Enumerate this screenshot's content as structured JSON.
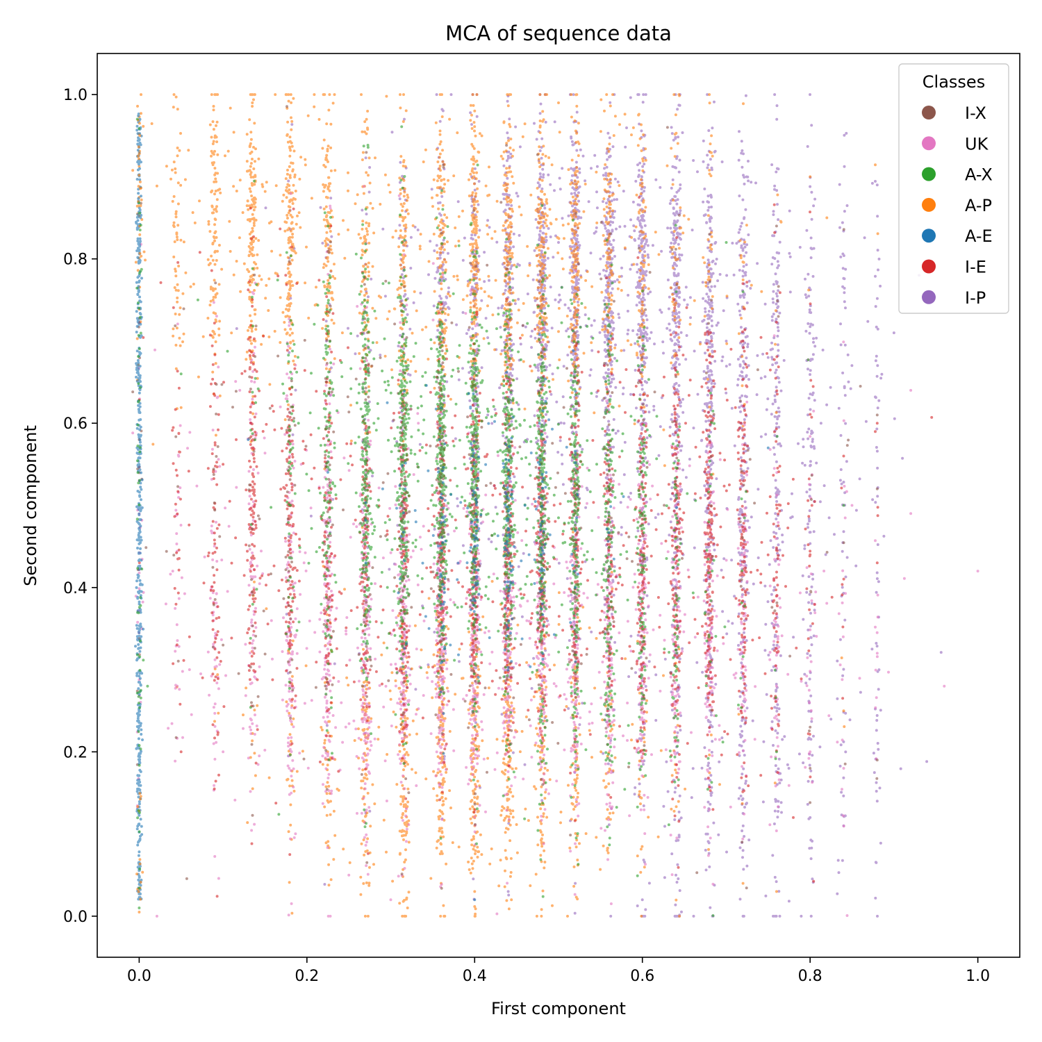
{
  "chart_data": {
    "type": "scatter",
    "title": "MCA of sequence data",
    "xlabel": "First component",
    "ylabel": "Second component",
    "xlim": [
      -0.05,
      1.05
    ],
    "ylim": [
      -0.05,
      1.05
    ],
    "xticks": [
      0.0,
      0.2,
      0.4,
      0.6,
      0.8,
      1.0
    ],
    "xtick_labels": [
      "0.0",
      "0.2",
      "0.4",
      "0.6",
      "0.8",
      "1.0"
    ],
    "yticks": [
      0.0,
      0.2,
      0.4,
      0.6,
      0.8,
      1.0
    ],
    "ytick_labels": [
      "0.0",
      "0.2",
      "0.4",
      "0.6",
      "0.8",
      "1.0"
    ],
    "grid": false,
    "legend": {
      "title": "Classes",
      "position": "top-right",
      "entries": [
        {
          "label": "I-X",
          "color": "#8c564b"
        },
        {
          "label": "UK",
          "color": "#e377c2"
        },
        {
          "label": "A-X",
          "color": "#2ca02c"
        },
        {
          "label": "A-P",
          "color": "#ff7f0e"
        },
        {
          "label": "A-E",
          "color": "#1f77b4"
        },
        {
          "label": "I-E",
          "color": "#d62728"
        },
        {
          "label": "I-P",
          "color": "#9467bd"
        }
      ]
    },
    "column_x_values": [
      0.0,
      0.045,
      0.09,
      0.135,
      0.18,
      0.225,
      0.27,
      0.315,
      0.36,
      0.4,
      0.44,
      0.48,
      0.52,
      0.56,
      0.6,
      0.64,
      0.68,
      0.72,
      0.76,
      0.8,
      0.84,
      0.88
    ],
    "series": [
      {
        "name": "I-P",
        "color": "#9467bd",
        "draw_order": 1,
        "points": [
          [
            0.5,
            0.82
          ],
          [
            0.45,
            0.88
          ],
          [
            0.55,
            0.8
          ],
          [
            0.6,
            0.86
          ],
          [
            0.65,
            0.75
          ],
          [
            0.7,
            0.7
          ],
          [
            0.4,
            0.78
          ],
          [
            0.75,
            0.68
          ],
          [
            0.9,
            0.71
          ],
          [
            0.93,
            0.78
          ],
          [
            0.88,
            0.89
          ],
          [
            0.64,
            0.05
          ],
          [
            0.52,
            0.04
          ],
          [
            0.72,
            0.08
          ],
          [
            0.8,
            0.12
          ],
          [
            0.84,
            0.11
          ],
          [
            0.88,
            0.14
          ],
          [
            0.44,
            0.03
          ],
          [
            0.6,
            0.02
          ],
          [
            0.68,
            0.06
          ]
        ],
        "clusters": [
          {
            "cx": 0.55,
            "cy": 0.78,
            "sx": 0.12,
            "sy": 0.09,
            "n": 1800
          },
          {
            "cx": 0.7,
            "cy": 0.6,
            "sx": 0.09,
            "sy": 0.12,
            "n": 700
          },
          {
            "cx": 0.72,
            "cy": 0.25,
            "sx": 0.09,
            "sy": 0.14,
            "n": 500
          },
          {
            "cx": 0.45,
            "cy": 0.55,
            "sx": 0.12,
            "sy": 0.18,
            "n": 700
          }
        ]
      },
      {
        "name": "A-P",
        "color": "#ff7f0e",
        "draw_order": 2,
        "points": [
          [
            0.135,
            0.99
          ],
          [
            0.4,
            0.98
          ],
          [
            0.5,
            0.99
          ],
          [
            0.37,
            0.97
          ],
          [
            0.0,
            0.005
          ],
          [
            0.32,
            0.01
          ],
          [
            0.36,
            0.04
          ],
          [
            0.4,
            0.03
          ],
          [
            0.76,
            0.03
          ],
          [
            0.72,
            0.04
          ],
          [
            0.8,
            0.9
          ],
          [
            0.82,
            0.85
          ],
          [
            0.84,
            0.25
          ],
          [
            0.04,
            0.87
          ]
        ],
        "clusters": [
          {
            "cx": 0.45,
            "cy": 0.8,
            "sx": 0.12,
            "sy": 0.09,
            "n": 1500
          },
          {
            "cx": 0.4,
            "cy": 0.2,
            "sx": 0.12,
            "sy": 0.09,
            "n": 1100
          },
          {
            "cx": 0.15,
            "cy": 0.83,
            "sx": 0.07,
            "sy": 0.09,
            "n": 700
          }
        ]
      },
      {
        "name": "UK",
        "color": "#e377c2",
        "draw_order": 3,
        "points": [
          [
            0.92,
            0.64
          ],
          [
            1.0,
            0.42
          ],
          [
            0.96,
            0.28
          ],
          [
            0.92,
            0.49
          ],
          [
            0.88,
            0.32
          ],
          [
            0.85,
            0.5
          ],
          [
            0.04,
            0.42
          ],
          [
            0.06,
            0.3
          ],
          [
            0.1,
            0.2
          ],
          [
            0.12,
            0.64
          ],
          [
            0.3,
            0.02
          ],
          [
            0.25,
            0.05
          ],
          [
            0.8,
            0.2
          ],
          [
            0.84,
            0.18
          ]
        ],
        "clusters": [
          {
            "cx": 0.4,
            "cy": 0.33,
            "sx": 0.16,
            "sy": 0.1,
            "n": 2600
          },
          {
            "cx": 0.25,
            "cy": 0.45,
            "sx": 0.12,
            "sy": 0.16,
            "n": 600
          },
          {
            "cx": 0.65,
            "cy": 0.35,
            "sx": 0.1,
            "sy": 0.12,
            "n": 500
          }
        ]
      },
      {
        "name": "I-E",
        "color": "#d62728",
        "draw_order": 4,
        "points": [
          [
            0.945,
            0.607
          ],
          [
            0.88,
            0.6
          ],
          [
            0.84,
            0.56
          ],
          [
            0.88,
            0.43
          ],
          [
            0.8,
            0.44
          ],
          [
            0.06,
            0.34
          ],
          [
            0.05,
            0.2
          ],
          [
            0.1,
            0.55
          ],
          [
            0.78,
            0.12
          ],
          [
            0.72,
            0.7
          ]
        ],
        "clusters": [
          {
            "cx": 0.43,
            "cy": 0.45,
            "sx": 0.14,
            "sy": 0.11,
            "n": 2600
          },
          {
            "cx": 0.68,
            "cy": 0.45,
            "sx": 0.06,
            "sy": 0.14,
            "n": 600
          },
          {
            "cx": 0.15,
            "cy": 0.5,
            "sx": 0.06,
            "sy": 0.14,
            "n": 400
          }
        ]
      },
      {
        "name": "I-X",
        "color": "#8c564b",
        "draw_order": 5,
        "points": [
          [
            0.86,
            0.645
          ],
          [
            0.88,
            0.61
          ],
          [
            0.88,
            0.52
          ],
          [
            0.8,
            0.23
          ],
          [
            0.8,
            0.18
          ],
          [
            0.88,
            0.19
          ],
          [
            0.1,
            0.33
          ],
          [
            0.63,
            0.96
          ],
          [
            0.68,
            0.83
          ],
          [
            0.76,
            0.84
          ]
        ],
        "clusters": [
          {
            "cx": 0.4,
            "cy": 0.5,
            "sx": 0.18,
            "sy": 0.16,
            "n": 700
          }
        ]
      },
      {
        "name": "A-X",
        "color": "#2ca02c",
        "draw_order": 6,
        "points": [
          [
            0.01,
            0.28
          ],
          [
            0.7,
            0.82
          ],
          [
            0.72,
            0.76
          ],
          [
            0.84,
            0.5
          ],
          [
            0.76,
            0.2
          ],
          [
            0.07,
            0.75
          ],
          [
            0.05,
            0.66
          ]
        ],
        "clusters": [
          {
            "cx": 0.42,
            "cy": 0.55,
            "sx": 0.1,
            "sy": 0.1,
            "n": 2200
          },
          {
            "cx": 0.3,
            "cy": 0.55,
            "sx": 0.07,
            "sy": 0.15,
            "n": 700
          },
          {
            "cx": 0.55,
            "cy": 0.35,
            "sx": 0.08,
            "sy": 0.12,
            "n": 500
          }
        ]
      },
      {
        "name": "A-E",
        "color": "#1f77b4",
        "draw_order": 7,
        "points": [
          [
            0.4,
            0.02
          ],
          [
            0.75,
            0.57
          ],
          [
            0.13,
            0.58
          ],
          [
            0.4,
            0.45
          ],
          [
            0.46,
            0.5
          ],
          [
            0.48,
            0.42
          ],
          [
            0.52,
            0.4
          ],
          [
            0.33,
            0.48
          ]
        ],
        "clusters": [
          {
            "cx": 0.42,
            "cy": 0.47,
            "sx": 0.06,
            "sy": 0.08,
            "n": 300
          }
        ],
        "vertical_band": {
          "x": 0.0,
          "y_range": [
            0.02,
            0.98
          ]
        }
      }
    ]
  }
}
